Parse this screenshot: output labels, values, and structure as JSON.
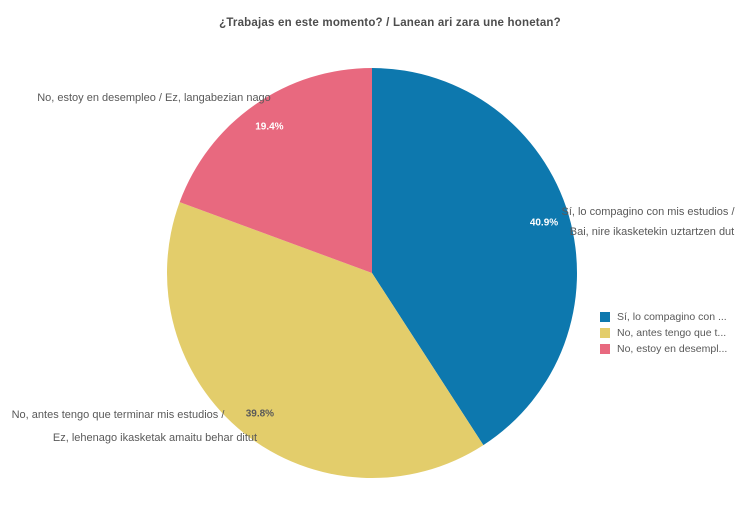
{
  "chart_data": {
    "type": "pie",
    "title": "¿Trabajas en este momento? / Lanean ari zara une honetan?",
    "start_angle_deg": 0,
    "direction": "clockwise",
    "legend_position": "right",
    "slices": [
      {
        "label": "Sí, lo compagino con mis estudios / Bai, nire ikasketekin uztartzen dut",
        "label_line1": "Sí, lo compagino con mis estudios /",
        "label_line2": "Bai, nire ikasketekin uztartzen dut",
        "value_pct": 40.9,
        "value_label": "40.9%",
        "color": "#0d78ae",
        "value_label_color": "#ffffff"
      },
      {
        "label": "No, antes tengo que terminar mis estudios / Ez, lehenago ikasketak amaitu behar ditut",
        "label_line1": "No, antes tengo que terminar mis estudios /",
        "label_line2": "Ez, lehenago ikasketak amaitu behar ditut",
        "value_pct": 39.8,
        "value_label": "39.8%",
        "color": "#e3cd6b",
        "value_label_color": "#595959"
      },
      {
        "label": "No, estoy en desempleo / Ez, langabezian nago",
        "label_line1": "No, estoy en desempleo / Ez, langabezian nago",
        "label_line2": "",
        "value_pct": 19.4,
        "value_label": "19.4%",
        "color": "#e8697f",
        "value_label_color": "#ffffff"
      }
    ],
    "legend": {
      "items": [
        {
          "label": "Sí, lo compagino con ...",
          "color": "#0d78ae"
        },
        {
          "label": "No, antes tengo que t...",
          "color": "#e3cd6b"
        },
        {
          "label": "No, estoy en desempl...",
          "color": "#e8697f"
        }
      ]
    }
  }
}
